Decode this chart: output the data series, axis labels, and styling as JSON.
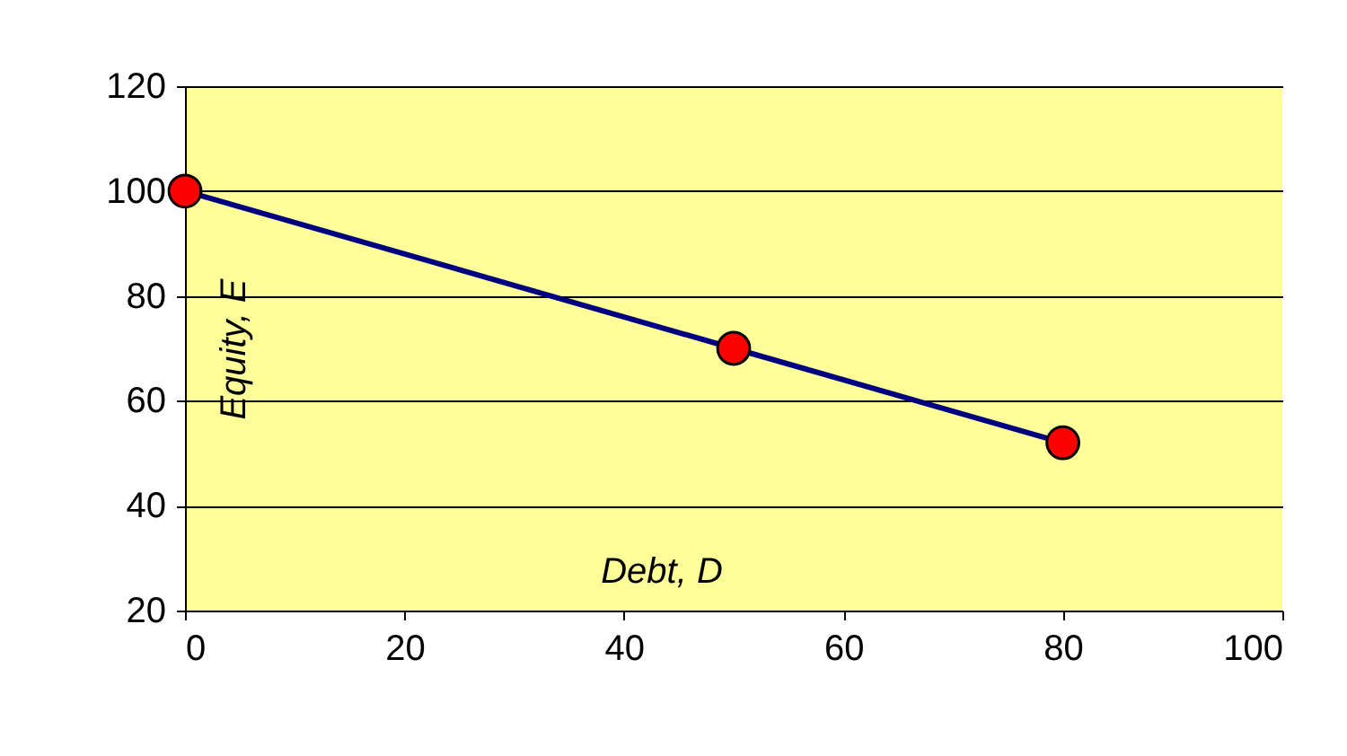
{
  "chart_data": {
    "type": "line",
    "xlabel": "Debt, D",
    "ylabel": "Equity, E",
    "x": [
      0,
      50,
      80
    ],
    "series": [
      {
        "color": "#000080",
        "values": [
          100,
          70,
          52
        ]
      }
    ],
    "xlim": [
      0,
      100
    ],
    "xticks": [
      0,
      20,
      40,
      60,
      80,
      100
    ],
    "ylim": [
      20,
      120
    ],
    "yticks": [
      20,
      40,
      60,
      80,
      100,
      120
    ],
    "grid": "y",
    "marker": "circle",
    "line_style": "solid",
    "legend": false
  }
}
